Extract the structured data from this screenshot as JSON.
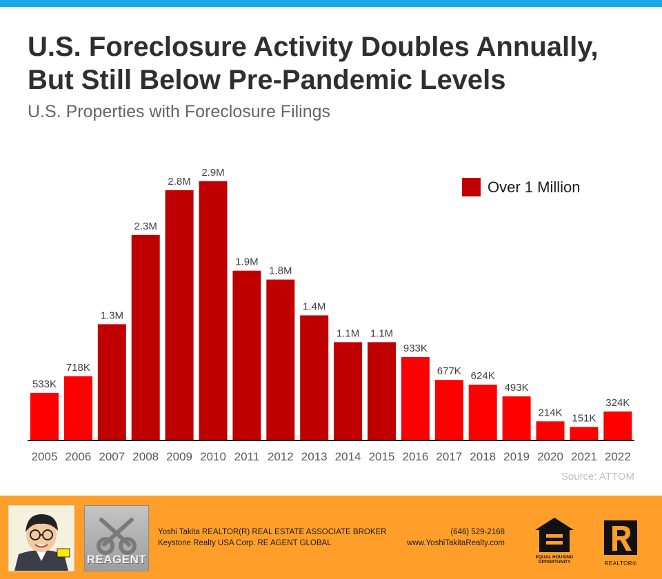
{
  "header": {
    "title_line1": "U.S. Foreclosure Activity Doubles Annually,",
    "title_line2": "But Still Below Pre-Pandemic Levels",
    "subtitle": "U.S. Properties with Foreclosure Filings"
  },
  "chart_data": {
    "type": "bar",
    "title": "U.S. Foreclosure Activity Doubles Annually, But Still Below Pre-Pandemic Levels",
    "subtitle": "U.S. Properties with Foreclosure Filings",
    "categories": [
      "2005",
      "2006",
      "2007",
      "2008",
      "2009",
      "2010",
      "2011",
      "2012",
      "2013",
      "2014",
      "2015",
      "2016",
      "2017",
      "2018",
      "2019",
      "2020",
      "2021",
      "2022"
    ],
    "values": [
      533000,
      718000,
      1300000,
      2300000,
      2800000,
      2900000,
      1900000,
      1800000,
      1400000,
      1100000,
      1100000,
      933000,
      677000,
      624000,
      493000,
      214000,
      151000,
      324000
    ],
    "data_labels": [
      "533K",
      "718K",
      "1.3M",
      "2.3M",
      "2.8M",
      "2.9M",
      "1.9M",
      "1.8M",
      "1.4M",
      "1.1M",
      "1.1M",
      "933K",
      "677K",
      "624K",
      "493K",
      "214K",
      "151K",
      "324K"
    ],
    "highlight": [
      false,
      false,
      true,
      true,
      true,
      true,
      true,
      true,
      true,
      true,
      true,
      false,
      false,
      false,
      false,
      false,
      false,
      false
    ],
    "legend": {
      "label": "Over 1 Million",
      "position": "top-right"
    },
    "colors": {
      "highlight": "#c00000",
      "default": "#ff0000"
    },
    "xlabel": "",
    "ylabel": "",
    "ylim": [
      0,
      2900000
    ],
    "grid": false
  },
  "source": "Source: ATTOM",
  "footer": {
    "line1_left": "Yoshi Takita REALTOR(R) REAL ESTATE ASSOCIATE BROKER",
    "line2_left": "Keystone Realty USA Corp.  RE AGENT GLOBAL",
    "line1_right": "(646) 529-2168",
    "line2_right": "www.YoshiTakitaRealty.com",
    "reagent_logo_text": "REAGENT",
    "eho_caption_line1": "EQUAL HOUSING",
    "eho_caption_line2": "OPPORTUNITY",
    "realtor_caption": "REALTOR®"
  },
  "colors": {
    "top_bar": "#1aa7e8",
    "footer": "#ff9f2a"
  }
}
